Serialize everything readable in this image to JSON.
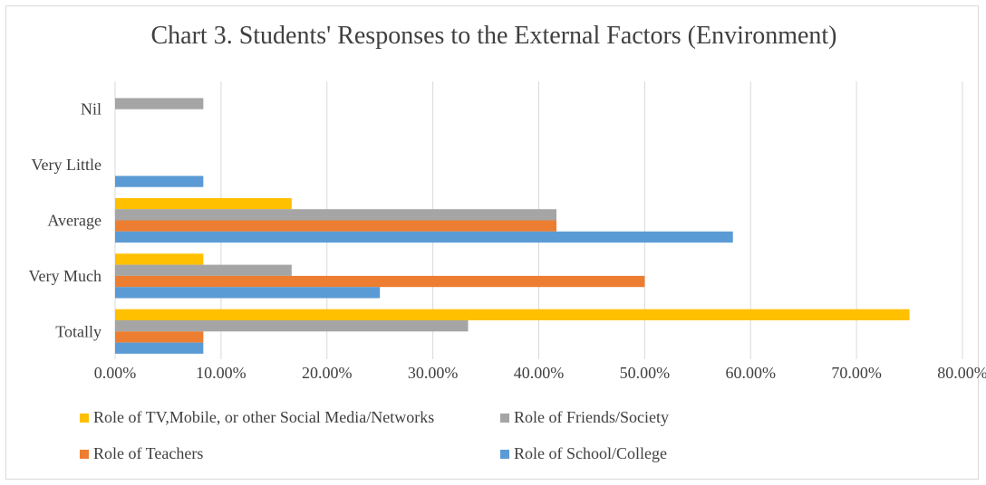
{
  "chart_data": {
    "type": "bar",
    "orientation": "horizontal",
    "title": "Chart 3. Students' Responses to the External Factors (Environment)",
    "xlabel": "",
    "ylabel": "",
    "categories": [
      "Nil",
      "Very Little",
      "Average",
      "Very Much",
      "Totally"
    ],
    "xlim": [
      0,
      80
    ],
    "x_ticks": [
      "0.00%",
      "10.00%",
      "20.00%",
      "30.00%",
      "40.00%",
      "50.00%",
      "60.00%",
      "70.00%",
      "80.00%"
    ],
    "grid": true,
    "legend_position": "bottom",
    "series": [
      {
        "name": "Role of TV,Mobile, or other Social Media/Networks",
        "color": "#FFC000",
        "values": [
          0,
          0,
          16.67,
          8.33,
          75.0
        ]
      },
      {
        "name": "Role of Friends/Society",
        "color": "#A5A5A5",
        "values": [
          8.33,
          0,
          41.67,
          16.67,
          33.33
        ]
      },
      {
        "name": "Role of Teachers",
        "color": "#ED7D31",
        "values": [
          0,
          0,
          41.67,
          50.0,
          8.33
        ]
      },
      {
        "name": "Role of School/College",
        "color": "#5B9BD5",
        "values": [
          0,
          8.33,
          58.33,
          25.0,
          8.33
        ]
      }
    ]
  }
}
